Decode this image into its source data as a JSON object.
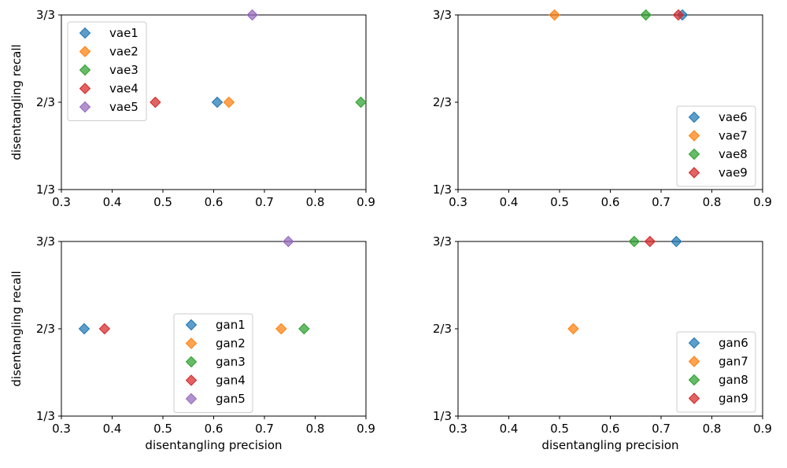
{
  "chart_data": [
    {
      "type": "scatter",
      "xlabel": "",
      "ylabel": "disentangling recall",
      "xlim": [
        0.3,
        0.9
      ],
      "ylim": [
        0.3333,
        1.0
      ],
      "xticks": [
        "0.3",
        "0.4",
        "0.5",
        "0.6",
        "0.7",
        "0.8",
        "0.9"
      ],
      "yticks": [
        "1/3",
        "2/3",
        "3/3"
      ],
      "grid": false,
      "legend_placement": "upper-left",
      "series": [
        {
          "name": "vae1",
          "color": "#1f77b4",
          "x": [
            0.607
          ],
          "y": [
            0.6667
          ]
        },
        {
          "name": "vae2",
          "color": "#ff7f0e",
          "x": [
            0.63
          ],
          "y": [
            0.6667
          ]
        },
        {
          "name": "vae3",
          "color": "#2ca02c",
          "x": [
            0.89
          ],
          "y": [
            0.6667
          ]
        },
        {
          "name": "vae4",
          "color": "#d62728",
          "x": [
            0.485
          ],
          "y": [
            0.6667
          ]
        },
        {
          "name": "vae5",
          "color": "#9467bd",
          "x": [
            0.676
          ],
          "y": [
            1.0
          ]
        }
      ]
    },
    {
      "type": "scatter",
      "xlabel": "",
      "ylabel": "",
      "xlim": [
        0.3,
        0.9
      ],
      "ylim": [
        0.3333,
        1.0
      ],
      "xticks": [
        "0.3",
        "0.4",
        "0.5",
        "0.6",
        "0.7",
        "0.8",
        "0.9"
      ],
      "yticks": [
        "1/3",
        "2/3",
        "3/3"
      ],
      "grid": false,
      "legend_placement": "lower-right",
      "series": [
        {
          "name": "vae6",
          "color": "#1f77b4",
          "x": [
            0.742
          ],
          "y": [
            1.0
          ]
        },
        {
          "name": "vae7",
          "color": "#ff7f0e",
          "x": [
            0.49
          ],
          "y": [
            1.0
          ]
        },
        {
          "name": "vae8",
          "color": "#2ca02c",
          "x": [
            0.67
          ],
          "y": [
            1.0
          ]
        },
        {
          "name": "vae9",
          "color": "#d62728",
          "x": [
            0.734
          ],
          "y": [
            1.0
          ]
        }
      ]
    },
    {
      "type": "scatter",
      "xlabel": "disentangling precision",
      "ylabel": "disentangling recall",
      "xlim": [
        0.3,
        0.9
      ],
      "ylim": [
        0.3333,
        1.0
      ],
      "xticks": [
        "0.3",
        "0.4",
        "0.5",
        "0.6",
        "0.7",
        "0.8",
        "0.9"
      ],
      "yticks": [
        "1/3",
        "2/3",
        "3/3"
      ],
      "grid": false,
      "legend_placement": "lower-center",
      "series": [
        {
          "name": "gan1",
          "color": "#1f77b4",
          "x": [
            0.345
          ],
          "y": [
            0.6667
          ]
        },
        {
          "name": "gan2",
          "color": "#ff7f0e",
          "x": [
            0.733
          ],
          "y": [
            0.6667
          ]
        },
        {
          "name": "gan3",
          "color": "#2ca02c",
          "x": [
            0.778
          ],
          "y": [
            0.6667
          ]
        },
        {
          "name": "gan4",
          "color": "#d62728",
          "x": [
            0.385
          ],
          "y": [
            0.6667
          ]
        },
        {
          "name": "gan5",
          "color": "#9467bd",
          "x": [
            0.747
          ],
          "y": [
            1.0
          ]
        }
      ]
    },
    {
      "type": "scatter",
      "xlabel": "disentangling precision",
      "ylabel": "",
      "xlim": [
        0.3,
        0.9
      ],
      "ylim": [
        0.3333,
        1.0
      ],
      "xticks": [
        "0.3",
        "0.4",
        "0.5",
        "0.6",
        "0.7",
        "0.8",
        "0.9"
      ],
      "yticks": [
        "1/3",
        "2/3",
        "3/3"
      ],
      "grid": false,
      "legend_placement": "lower-right",
      "series": [
        {
          "name": "gan6",
          "color": "#1f77b4",
          "x": [
            0.73
          ],
          "y": [
            1.0
          ]
        },
        {
          "name": "gan7",
          "color": "#ff7f0e",
          "x": [
            0.527
          ],
          "y": [
            0.6667
          ]
        },
        {
          "name": "gan8",
          "color": "#2ca02c",
          "x": [
            0.647
          ],
          "y": [
            1.0
          ]
        },
        {
          "name": "gan9",
          "color": "#d62728",
          "x": [
            0.678
          ],
          "y": [
            1.0
          ]
        }
      ]
    }
  ]
}
